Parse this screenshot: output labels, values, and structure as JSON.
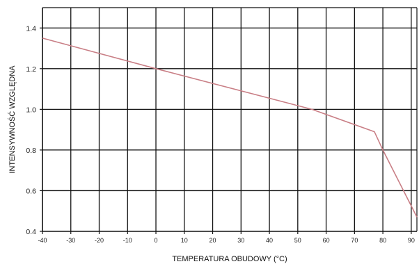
{
  "chart_data": {
    "type": "line",
    "title": "",
    "xlabel": "TEMPERATURA OBUDOWY (°C)",
    "ylabel": "INTENSYWNOŚĆ WZGLĘDNA",
    "xlim": [
      -40,
      92
    ],
    "ylim": [
      0.4,
      1.5
    ],
    "x_ticks": [
      -40,
      -30,
      -20,
      -10,
      0,
      10,
      20,
      30,
      40,
      50,
      60,
      70,
      80,
      90
    ],
    "x_tick_labels": [
      "-40",
      "-30",
      "-20",
      "-10",
      "0",
      "10",
      "20",
      "30",
      "40",
      "50",
      "60",
      "70",
      "80",
      "90"
    ],
    "y_ticks": [
      0.4,
      0.6,
      0.8,
      1.0,
      1.2,
      1.4
    ],
    "y_tick_labels": [
      "0.4",
      "0.6",
      "0.8",
      "1.0",
      "1.2",
      "1.4"
    ],
    "grid": true,
    "grid_color": "#111111",
    "series": [
      {
        "color": "#c97f86",
        "x": [
          -40,
          0,
          55,
          77,
          80,
          92
        ],
        "y": [
          1.35,
          1.2,
          1.0,
          0.89,
          0.8,
          0.47
        ]
      }
    ]
  }
}
